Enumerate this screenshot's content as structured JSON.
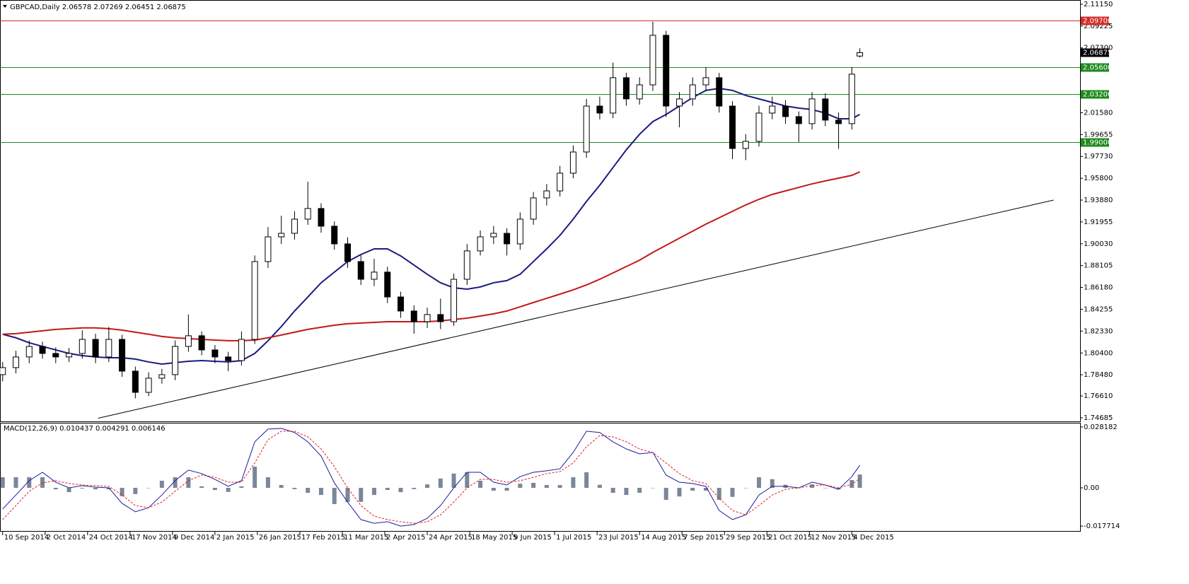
{
  "chart_data": [
    {
      "type": "candlestick",
      "title": "GBPCAD,Daily  2.06578 2.07269 2.06451 2.06875",
      "x": [
        0,
        5,
        10,
        15,
        20,
        25,
        30,
        35,
        40,
        45,
        50,
        55,
        60,
        65,
        70,
        75,
        80,
        85,
        90,
        95,
        100,
        105,
        110,
        115,
        120,
        125,
        130,
        135,
        140,
        145,
        150,
        155,
        160,
        165,
        170,
        175,
        180,
        185,
        190,
        195,
        200,
        205,
        210,
        215,
        220,
        225,
        230,
        235,
        240,
        245,
        250,
        255,
        260,
        265,
        270,
        275,
        280,
        285,
        290,
        295,
        300,
        305,
        310,
        315,
        320,
        323
      ],
      "open": [
        1.7849,
        1.7911,
        1.8005,
        1.8098,
        1.8036,
        1.8005,
        1.8036,
        1.816,
        1.8005,
        1.816,
        1.788,
        1.7693,
        1.7818,
        1.7849,
        1.8098,
        1.8192,
        1.8067,
        1.8005,
        1.7973,
        1.816,
        1.8846,
        1.9064,
        1.9095,
        1.922,
        1.9314,
        1.9158,
        1.9002,
        1.8846,
        1.869,
        1.8753,
        1.8534,
        1.841,
        1.8316,
        1.8379,
        1.8316,
        1.869,
        1.894,
        1.9064,
        1.9095,
        1.9002,
        1.922,
        1.9407,
        1.9469,
        1.9625,
        1.9812,
        2.0217,
        2.0155,
        2.0467,
        2.028,
        2.0404,
        2.0841,
        2.0217,
        2.028,
        2.0404,
        2.0467,
        2.0217,
        1.9843,
        1.9906,
        2.0155,
        2.0217,
        2.0124,
        2.0062,
        2.028,
        2.0093,
        2.0062,
        2.06578
      ],
      "high": [
        1.7961,
        1.806,
        1.815,
        1.814,
        1.809,
        1.8085,
        1.824,
        1.821,
        1.827,
        1.82,
        1.792,
        1.787,
        1.79,
        1.815,
        1.838,
        1.823,
        1.811,
        1.805,
        1.823,
        1.89,
        1.915,
        1.925,
        1.929,
        1.955,
        1.936,
        1.92,
        1.906,
        1.89,
        1.887,
        1.88,
        1.858,
        1.846,
        1.844,
        1.852,
        1.874,
        1.9,
        1.912,
        1.916,
        1.914,
        1.928,
        1.946,
        1.953,
        1.969,
        1.987,
        2.028,
        2.03,
        2.06,
        2.051,
        2.047,
        2.096,
        2.088,
        2.034,
        2.047,
        2.056,
        2.051,
        2.026,
        1.997,
        2.022,
        2.03,
        2.027,
        2.017,
        2.034,
        2.033,
        2.016,
        2.056,
        2.07269
      ],
      "low": [
        1.779,
        1.786,
        1.795,
        1.799,
        1.795,
        1.796,
        1.799,
        1.795,
        1.796,
        1.783,
        1.764,
        1.766,
        1.777,
        1.78,
        1.805,
        1.802,
        1.795,
        1.788,
        1.793,
        1.812,
        1.879,
        1.9,
        1.904,
        1.917,
        1.91,
        1.895,
        1.879,
        1.864,
        1.863,
        1.848,
        1.835,
        1.821,
        1.826,
        1.825,
        1.828,
        1.864,
        1.89,
        1.9,
        1.89,
        1.895,
        1.917,
        1.934,
        1.942,
        1.958,
        1.976,
        2.01,
        2.011,
        2.022,
        2.023,
        2.035,
        2.012,
        2.003,
        2.022,
        2.035,
        2.016,
        1.975,
        1.974,
        1.986,
        2.01,
        2.006,
        1.99,
        2.001,
        2.004,
        1.984,
        2.001,
        2.06451
      ],
      "close": [
        1.7911,
        1.8005,
        1.8098,
        1.8036,
        1.8005,
        1.8036,
        1.816,
        1.8005,
        1.816,
        1.788,
        1.7693,
        1.7818,
        1.7849,
        1.8098,
        1.8192,
        1.8067,
        1.8005,
        1.7973,
        1.816,
        1.8846,
        1.9064,
        1.9095,
        1.922,
        1.9314,
        1.9158,
        1.9002,
        1.8846,
        1.869,
        1.8753,
        1.8534,
        1.841,
        1.8316,
        1.8379,
        1.8316,
        1.869,
        1.894,
        1.9064,
        1.9095,
        1.9002,
        1.922,
        1.9407,
        1.9469,
        1.9625,
        1.9812,
        2.0217,
        2.0155,
        2.0467,
        2.028,
        2.0404,
        2.0841,
        2.0217,
        2.028,
        2.0404,
        2.0467,
        2.0217,
        1.9843,
        1.9906,
        2.0155,
        2.0217,
        2.0124,
        2.0062,
        2.028,
        2.0093,
        2.0062,
        2.0498,
        2.06875
      ],
      "bull_color": "#ffffff",
      "bear_color": "#000000",
      "outline_color": "#000000",
      "overlays": [
        {
          "color": "#1a1a80",
          "values": [
            1.8205,
            1.8174,
            1.813,
            1.8098,
            1.8067,
            1.8036,
            1.8017,
            1.8005,
            1.7998,
            1.7998,
            1.7986,
            1.7961,
            1.7942,
            1.7955,
            1.7967,
            1.7973,
            1.7967,
            1.7961,
            1.7973,
            1.8036,
            1.8148,
            1.8273,
            1.841,
            1.8534,
            1.8659,
            1.8753,
            1.8846,
            1.8908,
            1.8958,
            1.8958,
            1.8896,
            1.8815,
            1.8734,
            1.8659,
            1.8615,
            1.8603,
            1.8622,
            1.8659,
            1.8678,
            1.8734,
            1.8846,
            1.8958,
            1.9077,
            1.922,
            1.9376,
            1.9519,
            1.9675,
            1.9831,
            1.9968,
            2.008,
            2.0143,
            2.0217,
            2.0292,
            2.0355,
            2.0373,
            2.0355,
            2.0311,
            2.028,
            2.0249,
            2.0217,
            2.0199,
            2.0186,
            2.0155,
            2.0105,
            2.0105,
            2.0143
          ]
        },
        {
          "color": "#c41818",
          "values": [
            1.8205,
            1.8211,
            1.8223,
            1.8236,
            1.8248,
            1.8254,
            1.8261,
            1.8261,
            1.8254,
            1.8242,
            1.8223,
            1.8205,
            1.8186,
            1.8174,
            1.8167,
            1.816,
            1.8154,
            1.8148,
            1.8148,
            1.8154,
            1.8174,
            1.8198,
            1.8223,
            1.8248,
            1.8267,
            1.8285,
            1.8298,
            1.8304,
            1.831,
            1.8316,
            1.8316,
            1.8316,
            1.8316,
            1.8323,
            1.8335,
            1.8347,
            1.8366,
            1.8385,
            1.841,
            1.8447,
            1.8485,
            1.8522,
            1.8559,
            1.8597,
            1.864,
            1.869,
            1.8746,
            1.8802,
            1.8858,
            1.8927,
            1.8989,
            1.9052,
            1.9114,
            1.9176,
            1.9232,
            1.9289,
            1.9345,
            1.9395,
            1.9438,
            1.9469,
            1.95,
            1.9531,
            1.9557,
            1.9581,
            1.9606,
            1.9637
          ]
        }
      ],
      "trendline": {
        "x": [
          36,
          396
        ],
        "y": [
          1.7465,
          1.9388
        ],
        "color": "#000000"
      },
      "levels": [
        {
          "value": 2.097,
          "label": "2.09700",
          "color": "#d42a2a"
        },
        {
          "value": 2.056,
          "label": "2.05600",
          "color": "#1e8a1e"
        },
        {
          "value": 2.032,
          "label": "2.03200",
          "color": "#1e8a1e"
        },
        {
          "value": 1.99,
          "label": "1.99000",
          "color": "#1e8a1e"
        }
      ],
      "last_price": {
        "value": 2.06875,
        "label": "2.06875"
      },
      "xlim": [
        -1,
        406
      ],
      "ylim": [
        1.7437,
        2.1152
      ],
      "yticks": [
        {
          "value": 2.1115,
          "label": "2.11150"
        },
        {
          "value": 2.09225,
          "label": "2.09225"
        },
        {
          "value": 2.073,
          "label": "2.07300"
        },
        {
          "value": 2.0158,
          "label": "2.01580"
        },
        {
          "value": 1.99655,
          "label": "1.99655"
        },
        {
          "value": 1.9773,
          "label": "1.97730"
        },
        {
          "value": 1.958,
          "label": "1.95800"
        },
        {
          "value": 1.9388,
          "label": "1.93880"
        },
        {
          "value": 1.91955,
          "label": "1.91955"
        },
        {
          "value": 1.9003,
          "label": "1.90030"
        },
        {
          "value": 1.88105,
          "label": "1.88105"
        },
        {
          "value": 1.8618,
          "label": "1.86180"
        },
        {
          "value": 1.84255,
          "label": "1.84255"
        },
        {
          "value": 1.8233,
          "label": "1.82330"
        },
        {
          "value": 1.804,
          "label": "1.80400"
        },
        {
          "value": 1.7848,
          "label": "1.78480"
        },
        {
          "value": 1.7661,
          "label": "1.76610"
        },
        {
          "value": 1.74685,
          "label": "1.74685"
        }
      ],
      "xticks": [
        {
          "value": 0,
          "label": "10 Sep 2014"
        },
        {
          "value": 16,
          "label": "2 Oct 2014"
        },
        {
          "value": 32,
          "label": "24 Oct 2014"
        },
        {
          "value": 48,
          "label": "17 Nov 2014"
        },
        {
          "value": 64,
          "label": "9 Dec 2014"
        },
        {
          "value": 80,
          "label": "2 Jan 2015"
        },
        {
          "value": 96,
          "label": "26 Jan 2015"
        },
        {
          "value": 112,
          "label": "17 Feb 2015"
        },
        {
          "value": 128,
          "label": "11 Mar 2015"
        },
        {
          "value": 144,
          "label": "2 Apr 2015"
        },
        {
          "value": 160,
          "label": "24 Apr 2015"
        },
        {
          "value": 176,
          "label": "18 May 2015"
        },
        {
          "value": 192,
          "label": "9 Jun 2015"
        },
        {
          "value": 208,
          "label": "1 Jul 2015"
        },
        {
          "value": 224,
          "label": "23 Jul 2015"
        },
        {
          "value": 240,
          "label": "14 Aug 2015"
        },
        {
          "value": 256,
          "label": "7 Sep 2015"
        },
        {
          "value": 272,
          "label": "29 Sep 2015"
        },
        {
          "value": 288,
          "label": "21 Oct 2015"
        },
        {
          "value": 304,
          "label": "12 Nov 2015"
        },
        {
          "value": 320,
          "label": "4 Dec 2015"
        }
      ]
    },
    {
      "type": "macd",
      "title": "MACD(12,26,9) 0.010437 0.004291 0.006146",
      "ylim": [
        -0.0203,
        0.0301
      ],
      "yticks": [
        0.028182,
        {
          "value": 0,
          "label": "0.00"
        },
        -0.017714
      ],
      "histogram": {
        "color": "#7a8699",
        "values": [
          0.0049,
          0.0049,
          0.0049,
          0.0049,
          -0.0007,
          -0.002,
          -0.0003,
          -0.0007,
          -0.0007,
          -0.0039,
          -0.0029,
          0.0,
          0.0033,
          0.0049,
          0.0049,
          0.0007,
          -0.001,
          -0.0019,
          0.0007,
          0.0098,
          0.0049,
          0.0013,
          -0.0006,
          -0.0023,
          -0.0033,
          -0.0075,
          -0.0066,
          -0.0065,
          -0.0033,
          -0.001,
          -0.002,
          -0.0006,
          0.0016,
          0.0043,
          0.0066,
          0.0072,
          0.0033,
          -0.0013,
          -0.0013,
          0.0019,
          0.0023,
          0.0013,
          0.0013,
          0.0049,
          0.0072,
          0.0014,
          -0.0023,
          -0.0033,
          -0.0023,
          0.0,
          -0.0056,
          -0.004,
          -0.0013,
          -0.0013,
          -0.0056,
          -0.0042,
          0.0,
          0.0049,
          0.004,
          0.0014,
          0.0,
          0.0016,
          0.0,
          -0.0007,
          0.0036,
          0.006146
        ]
      },
      "series": [
        {
          "color": "#1c1c9c",
          "dashed": false,
          "values": [
            -0.0098,
            -0.0033,
            0.0033,
            0.0072,
            0.0026,
            0.0,
            0.001,
            0.0003,
            0.0,
            -0.0072,
            -0.0111,
            -0.0092,
            -0.0033,
            0.0033,
            0.0082,
            0.0066,
            0.0039,
            0.0007,
            0.0033,
            0.0213,
            0.0272,
            0.0275,
            0.0256,
            0.0213,
            0.0147,
            0.0023,
            -0.0066,
            -0.0147,
            -0.0164,
            -0.0157,
            -0.0177,
            -0.017,
            -0.0141,
            -0.0082,
            0.0,
            0.0072,
            0.0072,
            0.0026,
            0.0013,
            0.0052,
            0.0072,
            0.0079,
            0.0088,
            0.0164,
            0.0262,
            0.0256,
            0.0213,
            0.018,
            0.0157,
            0.0164,
            0.0059,
            0.0026,
            0.002,
            0.0007,
            -0.0105,
            -0.0147,
            -0.0125,
            -0.0033,
            0.0007,
            0.0007,
            0.0,
            0.0026,
            0.0013,
            -0.0007,
            0.0052,
            0.010437
          ]
        },
        {
          "color": "#e02020",
          "dashed": true,
          "values": [
            -0.0147,
            -0.0082,
            -0.0016,
            0.0023,
            0.0033,
            0.002,
            0.0013,
            0.001,
            0.0007,
            -0.0033,
            -0.0082,
            -0.0092,
            -0.0066,
            -0.0016,
            0.0033,
            0.0059,
            0.0049,
            0.0026,
            0.0026,
            0.0115,
            0.0223,
            0.0262,
            0.0262,
            0.0236,
            0.018,
            0.0098,
            0.0,
            -0.0082,
            -0.0131,
            -0.0147,
            -0.0157,
            -0.0164,
            -0.0157,
            -0.0125,
            -0.0066,
            0.0,
            0.0039,
            0.0039,
            0.0026,
            0.0033,
            0.0049,
            0.0066,
            0.0075,
            0.0115,
            0.019,
            0.0242,
            0.0236,
            0.0213,
            0.018,
            0.0164,
            0.0115,
            0.0066,
            0.0033,
            0.002,
            -0.0049,
            -0.0105,
            -0.0125,
            -0.0082,
            -0.0033,
            -0.0007,
            0.0,
            0.001,
            0.0013,
            0.0,
            0.0016,
            0.004291
          ]
        }
      ]
    }
  ]
}
